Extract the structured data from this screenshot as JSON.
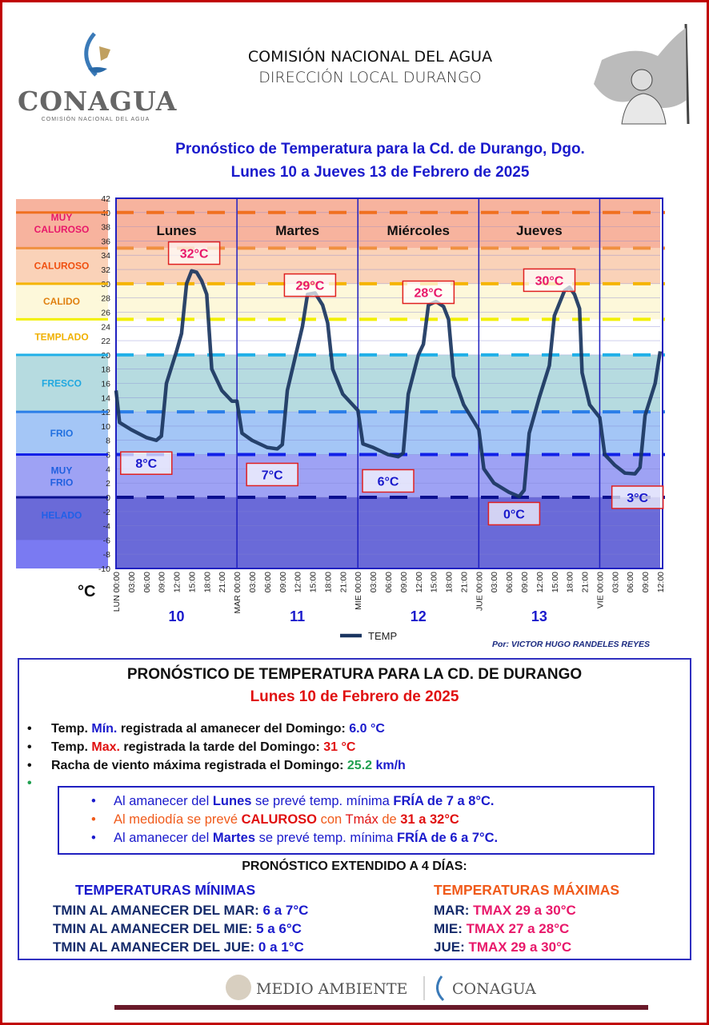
{
  "header": {
    "logo_text": "CONAGUA",
    "logo_subtext": "COMISIÓN NACIONAL DEL AGUA",
    "org_line1": "COMISIÓN NACIONAL DEL AGUA",
    "org_line2": "DIRECCIÓN LOCAL DURANGO",
    "title_line1": "Pronóstico  de Temperatura para  la Cd. de Durango, Dgo.",
    "title_line2": "Lunes 10 a Jueves 13 de Febrero de 2025"
  },
  "chart_data": {
    "type": "line",
    "ylabel": "°C",
    "ylim": [
      -10,
      42
    ],
    "ytick_step": 2,
    "xlim_hours": [
      0,
      108
    ],
    "series": [
      {
        "name": "TEMP",
        "color": "#1a3560",
        "points": [
          [
            0,
            15
          ],
          [
            0.7,
            10.5
          ],
          [
            3,
            9.5
          ],
          [
            6,
            8.4
          ],
          [
            8,
            8
          ],
          [
            9,
            8.6
          ],
          [
            10,
            16
          ],
          [
            12,
            20.5
          ],
          [
            13,
            23
          ],
          [
            14,
            30
          ],
          [
            15,
            31.8
          ],
          [
            16,
            31.6
          ],
          [
            17,
            30.4
          ],
          [
            18,
            28.5
          ],
          [
            19,
            18
          ],
          [
            21,
            15
          ],
          [
            23,
            13.5
          ],
          [
            24,
            13.5
          ],
          [
            25,
            9
          ],
          [
            27,
            8
          ],
          [
            30,
            7
          ],
          [
            32,
            6.8
          ],
          [
            33,
            7.4
          ],
          [
            34,
            15
          ],
          [
            36,
            21
          ],
          [
            37,
            24
          ],
          [
            38,
            28.5
          ],
          [
            39.5,
            28.7
          ],
          [
            41,
            27
          ],
          [
            42,
            24.5
          ],
          [
            43,
            18
          ],
          [
            45,
            14.5
          ],
          [
            48,
            12.2
          ],
          [
            49,
            7.5
          ],
          [
            51,
            7
          ],
          [
            54,
            6
          ],
          [
            56,
            5.7
          ],
          [
            57,
            6.2
          ],
          [
            58,
            14.5
          ],
          [
            60,
            20
          ],
          [
            61,
            21.5
          ],
          [
            62,
            27
          ],
          [
            63.5,
            27.5
          ],
          [
            65,
            26.8
          ],
          [
            66,
            25
          ],
          [
            67,
            17
          ],
          [
            69,
            13
          ],
          [
            72,
            9.5
          ],
          [
            73,
            4
          ],
          [
            75,
            2
          ],
          [
            78,
            0.7
          ],
          [
            80,
            0.1
          ],
          [
            81,
            1
          ],
          [
            82,
            9
          ],
          [
            84,
            14
          ],
          [
            86,
            18.5
          ],
          [
            87,
            25.5
          ],
          [
            89,
            29
          ],
          [
            90,
            29.5
          ],
          [
            91,
            28.5
          ],
          [
            92,
            26.5
          ],
          [
            92.5,
            17.5
          ],
          [
            94,
            13
          ],
          [
            96,
            11.2
          ],
          [
            97,
            6
          ],
          [
            99,
            4.5
          ],
          [
            101,
            3.4
          ],
          [
            103,
            3.3
          ],
          [
            104,
            4.2
          ],
          [
            105,
            11.5
          ],
          [
            107,
            16
          ],
          [
            108,
            20.5
          ]
        ]
      }
    ],
    "thresholds": [
      {
        "value": 40,
        "color": "#f07020"
      },
      {
        "value": 35,
        "color": "#f09040"
      },
      {
        "value": 30,
        "color": "#f5b400"
      },
      {
        "value": 25,
        "color": "#f2f000"
      },
      {
        "value": 20,
        "color": "#20b0e8"
      },
      {
        "value": 12,
        "color": "#2a7ee8"
      },
      {
        "value": 6,
        "color": "#1020e8"
      },
      {
        "value": 0,
        "color": "#0a1090"
      }
    ],
    "bands": [
      {
        "label": "MUY CALUROSO",
        "from": 35,
        "to": 42,
        "fill": "#f7b39e",
        "text": "#e8186a"
      },
      {
        "label": "CALUROSO",
        "from": 30,
        "to": 35,
        "fill": "#fad2b8",
        "text": "#f05010"
      },
      {
        "label": "CALIDO",
        "from": 25,
        "to": 30,
        "fill": "#fdf8da",
        "text": "#e08010"
      },
      {
        "label": "TEMPLADO",
        "from": 20,
        "to": 25,
        "fill": "#ffffff",
        "text": "#f0b000"
      },
      {
        "label": "FRESCO",
        "from": 12,
        "to": 20,
        "fill": "#b6dbe0",
        "text": "#20a8e0"
      },
      {
        "label": "FRIO",
        "from": 6,
        "to": 12,
        "fill": "#a4c6f6",
        "text": "#2070e0"
      },
      {
        "label": "MUY FRIO",
        "from": 0,
        "to": 6,
        "fill": "#9ea2f4",
        "text": "#2060e0"
      },
      {
        "label": "HELADO",
        "from": -10,
        "to": 0,
        "fill": "#6a6ad8",
        "text": "#2060e8"
      }
    ],
    "days": [
      {
        "name": "Lunes",
        "num": "10",
        "abbr": "LUN"
      },
      {
        "name": "Martes",
        "num": "11",
        "abbr": "MAR"
      },
      {
        "name": "Miércoles",
        "num": "12",
        "abbr": "MIE"
      },
      {
        "name": "Jueves",
        "num": "13",
        "abbr": "JUE"
      },
      {
        "name": "",
        "num": "",
        "abbr": "VIE"
      }
    ],
    "x_ticks": [
      "00:00",
      "03:00",
      "06:00",
      "09:00",
      "12:00",
      "15:00",
      "18:00",
      "21:00"
    ],
    "annotations": [
      {
        "text": "32°C",
        "hour": 15.5,
        "temp": 34.3,
        "kind": "max"
      },
      {
        "text": "8°C",
        "hour": 6,
        "temp": 4.8,
        "kind": "min"
      },
      {
        "text": "29°C",
        "hour": 38.5,
        "temp": 29.8,
        "kind": "max"
      },
      {
        "text": "7°C",
        "hour": 31,
        "temp": 3.2,
        "kind": "min"
      },
      {
        "text": "28°C",
        "hour": 62,
        "temp": 28.8,
        "kind": "max"
      },
      {
        "text": "6°C",
        "hour": 54,
        "temp": 2.3,
        "kind": "min"
      },
      {
        "text": "30°C",
        "hour": 86,
        "temp": 30.5,
        "kind": "max"
      },
      {
        "text": "0°C",
        "hour": 79,
        "temp": -2.3,
        "kind": "min"
      },
      {
        "text": "3°C",
        "hour": 103.5,
        "temp": 0,
        "kind": "min"
      }
    ],
    "legend": "TEMP",
    "credit": "Por:  VICTOR HUGO RANDELES REYES"
  },
  "summary": {
    "title": "PRONÓSTICO DE TEMPERATURA PARA LA CD. DE DURANGO",
    "date": "Lunes 10 de Febrero de 2025",
    "obs": [
      [
        {
          "t": "Temp. ",
          "c": ""
        },
        {
          "t": "Mín.",
          "c": "blue"
        },
        {
          "t": " registrada al amanecer del Domingo: ",
          "c": ""
        },
        {
          "t": "6.0 °C",
          "c": "blue"
        }
      ],
      [
        {
          "t": "Temp. ",
          "c": ""
        },
        {
          "t": "Max.",
          "c": "red"
        },
        {
          "t": " registrada la tarde del Domingo: ",
          "c": ""
        },
        {
          "t": "31 °C",
          "c": "red"
        }
      ],
      [
        {
          "t": "Racha de viento máxima registrada el Domingo:  ",
          "c": ""
        },
        {
          "t": "25.2",
          "c": "green"
        },
        {
          "t": "  km/h",
          "c": "blue"
        }
      ]
    ],
    "forecast": [
      {
        "c": "blue",
        "segs": [
          {
            "t": "Al amanecer del ",
            "b": false
          },
          {
            "t": "Lunes",
            "b": true
          },
          {
            "t": " se prevé temp. mínima ",
            "b": false
          },
          {
            "t": "FRÍA de 7 a 8°C.",
            "b": true
          }
        ]
      },
      {
        "c": "orange",
        "segs": [
          {
            "t": "Al mediodía se prevé ",
            "b": false
          },
          {
            "t": "CALUROSO",
            "b": true,
            "c": "red"
          },
          {
            "t": " con ",
            "b": false
          },
          {
            "t": "Tmáx",
            "b": false,
            "c": "red"
          },
          {
            "t": " de ",
            "b": false
          },
          {
            "t": "31 a 32°C",
            "b": true,
            "c": "red"
          }
        ]
      },
      {
        "c": "blue",
        "segs": [
          {
            "t": "Al amanecer del ",
            "b": false
          },
          {
            "t": "Martes",
            "b": true
          },
          {
            "t": " se prevé temp. mínima ",
            "b": false
          },
          {
            "t": "FRÍA de 6 a 7°C.",
            "b": true
          }
        ]
      }
    ],
    "extended_title": "PRONÓSTICO EXTENDIDO A 4 DÍAS:",
    "min_title": "TEMPERATURAS MÍNIMAS",
    "max_title": "TEMPERATURAS MÁXIMAS",
    "min_rows": [
      {
        "label": "TMIN AL AMANECER DEL MAR:  ",
        "value": "6 a 7°C"
      },
      {
        "label": "TMIN AL AMANECER DEL MIE:  ",
        "value": "5 a 6°C"
      },
      {
        "label": "TMIN AL AMANECER DEL JUE:  ",
        "value": "0 a 1°C"
      }
    ],
    "max_rows": [
      {
        "label": "MAR: ",
        "value": "TMAX 29 a 30°C"
      },
      {
        "label": "MIE:  ",
        "value": "TMAX 27 a 28°C"
      },
      {
        "label": "JUE: ",
        "value": "TMAX 29 a 30°C"
      }
    ]
  },
  "footer": {
    "left_logo": "MEDIO AMBIENTE",
    "right_logo": "CONAGUA"
  }
}
